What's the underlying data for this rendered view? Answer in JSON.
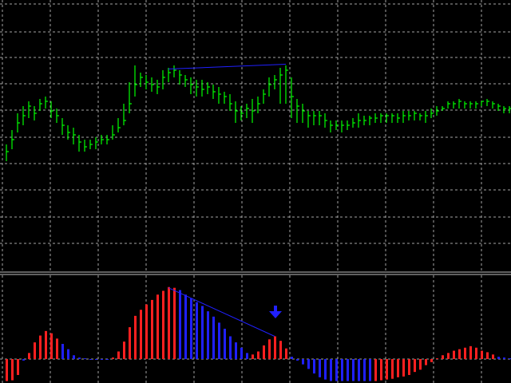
{
  "colors": {
    "background": "#000000",
    "grid": "#c0c0c0",
    "bar_up": "#00ff00",
    "bar_down": "#00ff00",
    "hist_positive": "#ff2020",
    "hist_negative": "#2020ff",
    "divergence_line": "#2020ff",
    "signal_arrow": "#2020ff",
    "separator": "#c0c0c0"
  },
  "chart_data": [
    {
      "type": "ohlc",
      "title": "",
      "grid": true,
      "legend": "none",
      "ylim": [
        0,
        1
      ],
      "x": [
        0,
        1,
        2,
        3,
        4,
        5,
        6,
        7,
        8,
        9,
        10,
        11,
        12,
        13,
        14,
        15,
        16,
        17,
        18,
        19,
        20,
        21,
        22,
        23,
        24,
        25,
        26,
        27,
        28,
        29,
        30,
        31,
        32,
        33,
        34,
        35,
        36,
        37,
        38,
        39,
        40,
        41,
        42,
        43,
        44,
        45,
        46,
        47,
        48,
        49,
        50,
        51,
        52,
        53,
        54,
        55,
        56,
        57,
        58,
        59,
        60,
        61,
        62,
        63,
        64,
        65,
        66,
        67,
        68,
        69,
        70,
        71,
        72,
        73,
        74,
        75,
        76,
        77,
        78,
        79,
        80,
        81,
        82,
        83,
        84,
        85,
        86,
        87,
        88,
        89,
        90
      ],
      "close": [
        0.5,
        0.55,
        0.62,
        0.65,
        0.69,
        0.66,
        0.7,
        0.71,
        0.67,
        0.65,
        0.61,
        0.58,
        0.57,
        0.54,
        0.52,
        0.53,
        0.54,
        0.55,
        0.55,
        0.57,
        0.6,
        0.63,
        0.7,
        0.78,
        0.81,
        0.79,
        0.78,
        0.77,
        0.81,
        0.83,
        0.84,
        0.82,
        0.8,
        0.78,
        0.77,
        0.76,
        0.77,
        0.75,
        0.74,
        0.73,
        0.7,
        0.67,
        0.66,
        0.68,
        0.67,
        0.7,
        0.74,
        0.78,
        0.8,
        0.82,
        0.84,
        0.73,
        0.69,
        0.67,
        0.65,
        0.65,
        0.65,
        0.63,
        0.61,
        0.61,
        0.61,
        0.61,
        0.62,
        0.63,
        0.63,
        0.64,
        0.64,
        0.65,
        0.65,
        0.65,
        0.64,
        0.65,
        0.65,
        0.66,
        0.65,
        0.65,
        0.66,
        0.67,
        0.68,
        0.7,
        0.7,
        0.71,
        0.7,
        0.7,
        0.7,
        0.71,
        0.71,
        0.7,
        0.69,
        0.68,
        0.68
      ],
      "high": [
        0.53,
        0.59,
        0.66,
        0.69,
        0.71,
        0.69,
        0.72,
        0.73,
        0.71,
        0.68,
        0.64,
        0.61,
        0.6,
        0.57,
        0.55,
        0.55,
        0.56,
        0.57,
        0.57,
        0.61,
        0.64,
        0.7,
        0.79,
        0.86,
        0.83,
        0.82,
        0.81,
        0.8,
        0.84,
        0.85,
        0.86,
        0.84,
        0.82,
        0.81,
        0.8,
        0.8,
        0.79,
        0.78,
        0.77,
        0.75,
        0.74,
        0.71,
        0.69,
        0.7,
        0.72,
        0.73,
        0.76,
        0.81,
        0.82,
        0.85,
        0.86,
        0.81,
        0.72,
        0.7,
        0.67,
        0.67,
        0.67,
        0.66,
        0.63,
        0.63,
        0.63,
        0.63,
        0.64,
        0.66,
        0.65,
        0.65,
        0.66,
        0.66,
        0.66,
        0.66,
        0.66,
        0.67,
        0.67,
        0.67,
        0.66,
        0.67,
        0.68,
        0.69,
        0.69,
        0.71,
        0.71,
        0.72,
        0.71,
        0.71,
        0.71,
        0.71,
        0.72,
        0.71,
        0.7,
        0.69,
        0.69
      ],
      "low": [
        0.46,
        0.51,
        0.58,
        0.61,
        0.64,
        0.63,
        0.67,
        0.68,
        0.64,
        0.62,
        0.57,
        0.55,
        0.53,
        0.5,
        0.5,
        0.51,
        0.51,
        0.53,
        0.53,
        0.55,
        0.58,
        0.61,
        0.66,
        0.73,
        0.77,
        0.76,
        0.75,
        0.74,
        0.76,
        0.79,
        0.81,
        0.78,
        0.77,
        0.74,
        0.73,
        0.73,
        0.74,
        0.72,
        0.7,
        0.7,
        0.67,
        0.62,
        0.63,
        0.64,
        0.62,
        0.66,
        0.7,
        0.73,
        0.76,
        0.7,
        0.7,
        0.64,
        0.62,
        0.62,
        0.6,
        0.61,
        0.61,
        0.6,
        0.58,
        0.59,
        0.58,
        0.59,
        0.6,
        0.6,
        0.61,
        0.61,
        0.62,
        0.62,
        0.62,
        0.62,
        0.62,
        0.62,
        0.63,
        0.63,
        0.63,
        0.62,
        0.64,
        0.65,
        0.67,
        0.68,
        0.68,
        0.68,
        0.68,
        0.68,
        0.68,
        0.69,
        0.69,
        0.68,
        0.67,
        0.66,
        0.66
      ],
      "trendline": {
        "from": {
          "x": 29,
          "y": 0.845
        },
        "to": {
          "x": 50,
          "y": 0.865
        }
      }
    },
    {
      "type": "histogram",
      "title": "",
      "grid": true,
      "legend": "none",
      "ylim": [
        -0.3,
        1.0
      ],
      "x": [
        0,
        1,
        2,
        3,
        4,
        5,
        6,
        7,
        8,
        9,
        10,
        11,
        12,
        13,
        14,
        15,
        16,
        17,
        18,
        19,
        20,
        21,
        22,
        23,
        24,
        25,
        26,
        27,
        28,
        29,
        30,
        31,
        32,
        33,
        34,
        35,
        36,
        37,
        38,
        39,
        40,
        41,
        42,
        43,
        44,
        45,
        46,
        47,
        48,
        49,
        50,
        51,
        52,
        53,
        54,
        55,
        56,
        57,
        58,
        59,
        60,
        61,
        62,
        63,
        64,
        65,
        66,
        67,
        68,
        69,
        70,
        71,
        72,
        73,
        74,
        75,
        76,
        77,
        78,
        79,
        80,
        81,
        82,
        83,
        84,
        85,
        86,
        87,
        88,
        89,
        90
      ],
      "values": [
        -0.29,
        -0.28,
        -0.21,
        -0.02,
        0.08,
        0.22,
        0.31,
        0.37,
        0.34,
        0.27,
        0.2,
        0.13,
        0.05,
        0.02,
        0.01,
        0.0,
        0.0,
        0.0,
        0.0,
        0.02,
        0.1,
        0.23,
        0.42,
        0.57,
        0.65,
        0.72,
        0.78,
        0.85,
        0.9,
        0.95,
        0.94,
        0.91,
        0.85,
        0.8,
        0.75,
        0.7,
        0.63,
        0.56,
        0.48,
        0.4,
        0.3,
        0.22,
        0.15,
        0.08,
        0.06,
        0.1,
        0.18,
        0.26,
        0.3,
        0.24,
        0.14,
        0.03,
        -0.02,
        -0.07,
        -0.13,
        -0.19,
        -0.24,
        -0.27,
        -0.29,
        -0.29,
        -0.29,
        -0.29,
        -0.29,
        -0.29,
        -0.29,
        -0.29,
        -0.29,
        -0.28,
        -0.27,
        -0.26,
        -0.24,
        -0.23,
        -0.21,
        -0.17,
        -0.14,
        -0.08,
        -0.04,
        0.01,
        0.05,
        0.08,
        0.11,
        0.13,
        0.15,
        0.17,
        0.15,
        0.11,
        0.09,
        0.06,
        0.03,
        0.02,
        0.01
      ],
      "positive_color_indices": [
        0,
        1,
        2,
        4,
        5,
        6,
        7,
        8,
        9,
        19,
        20,
        21,
        22,
        23,
        24,
        25,
        26,
        27,
        28,
        29,
        30,
        44,
        45,
        46,
        47,
        48,
        49,
        50,
        66,
        67,
        68,
        69,
        70,
        71,
        72,
        73,
        74,
        75,
        76,
        77,
        78,
        79,
        80,
        81,
        82,
        83,
        84,
        85,
        86,
        87
      ],
      "divergence_line": {
        "from": {
          "x": 29,
          "y": 0.94
        },
        "to": {
          "x": 48,
          "y": 0.3
        }
      },
      "signal_arrow": {
        "x": 48,
        "direction": "down"
      }
    }
  ]
}
